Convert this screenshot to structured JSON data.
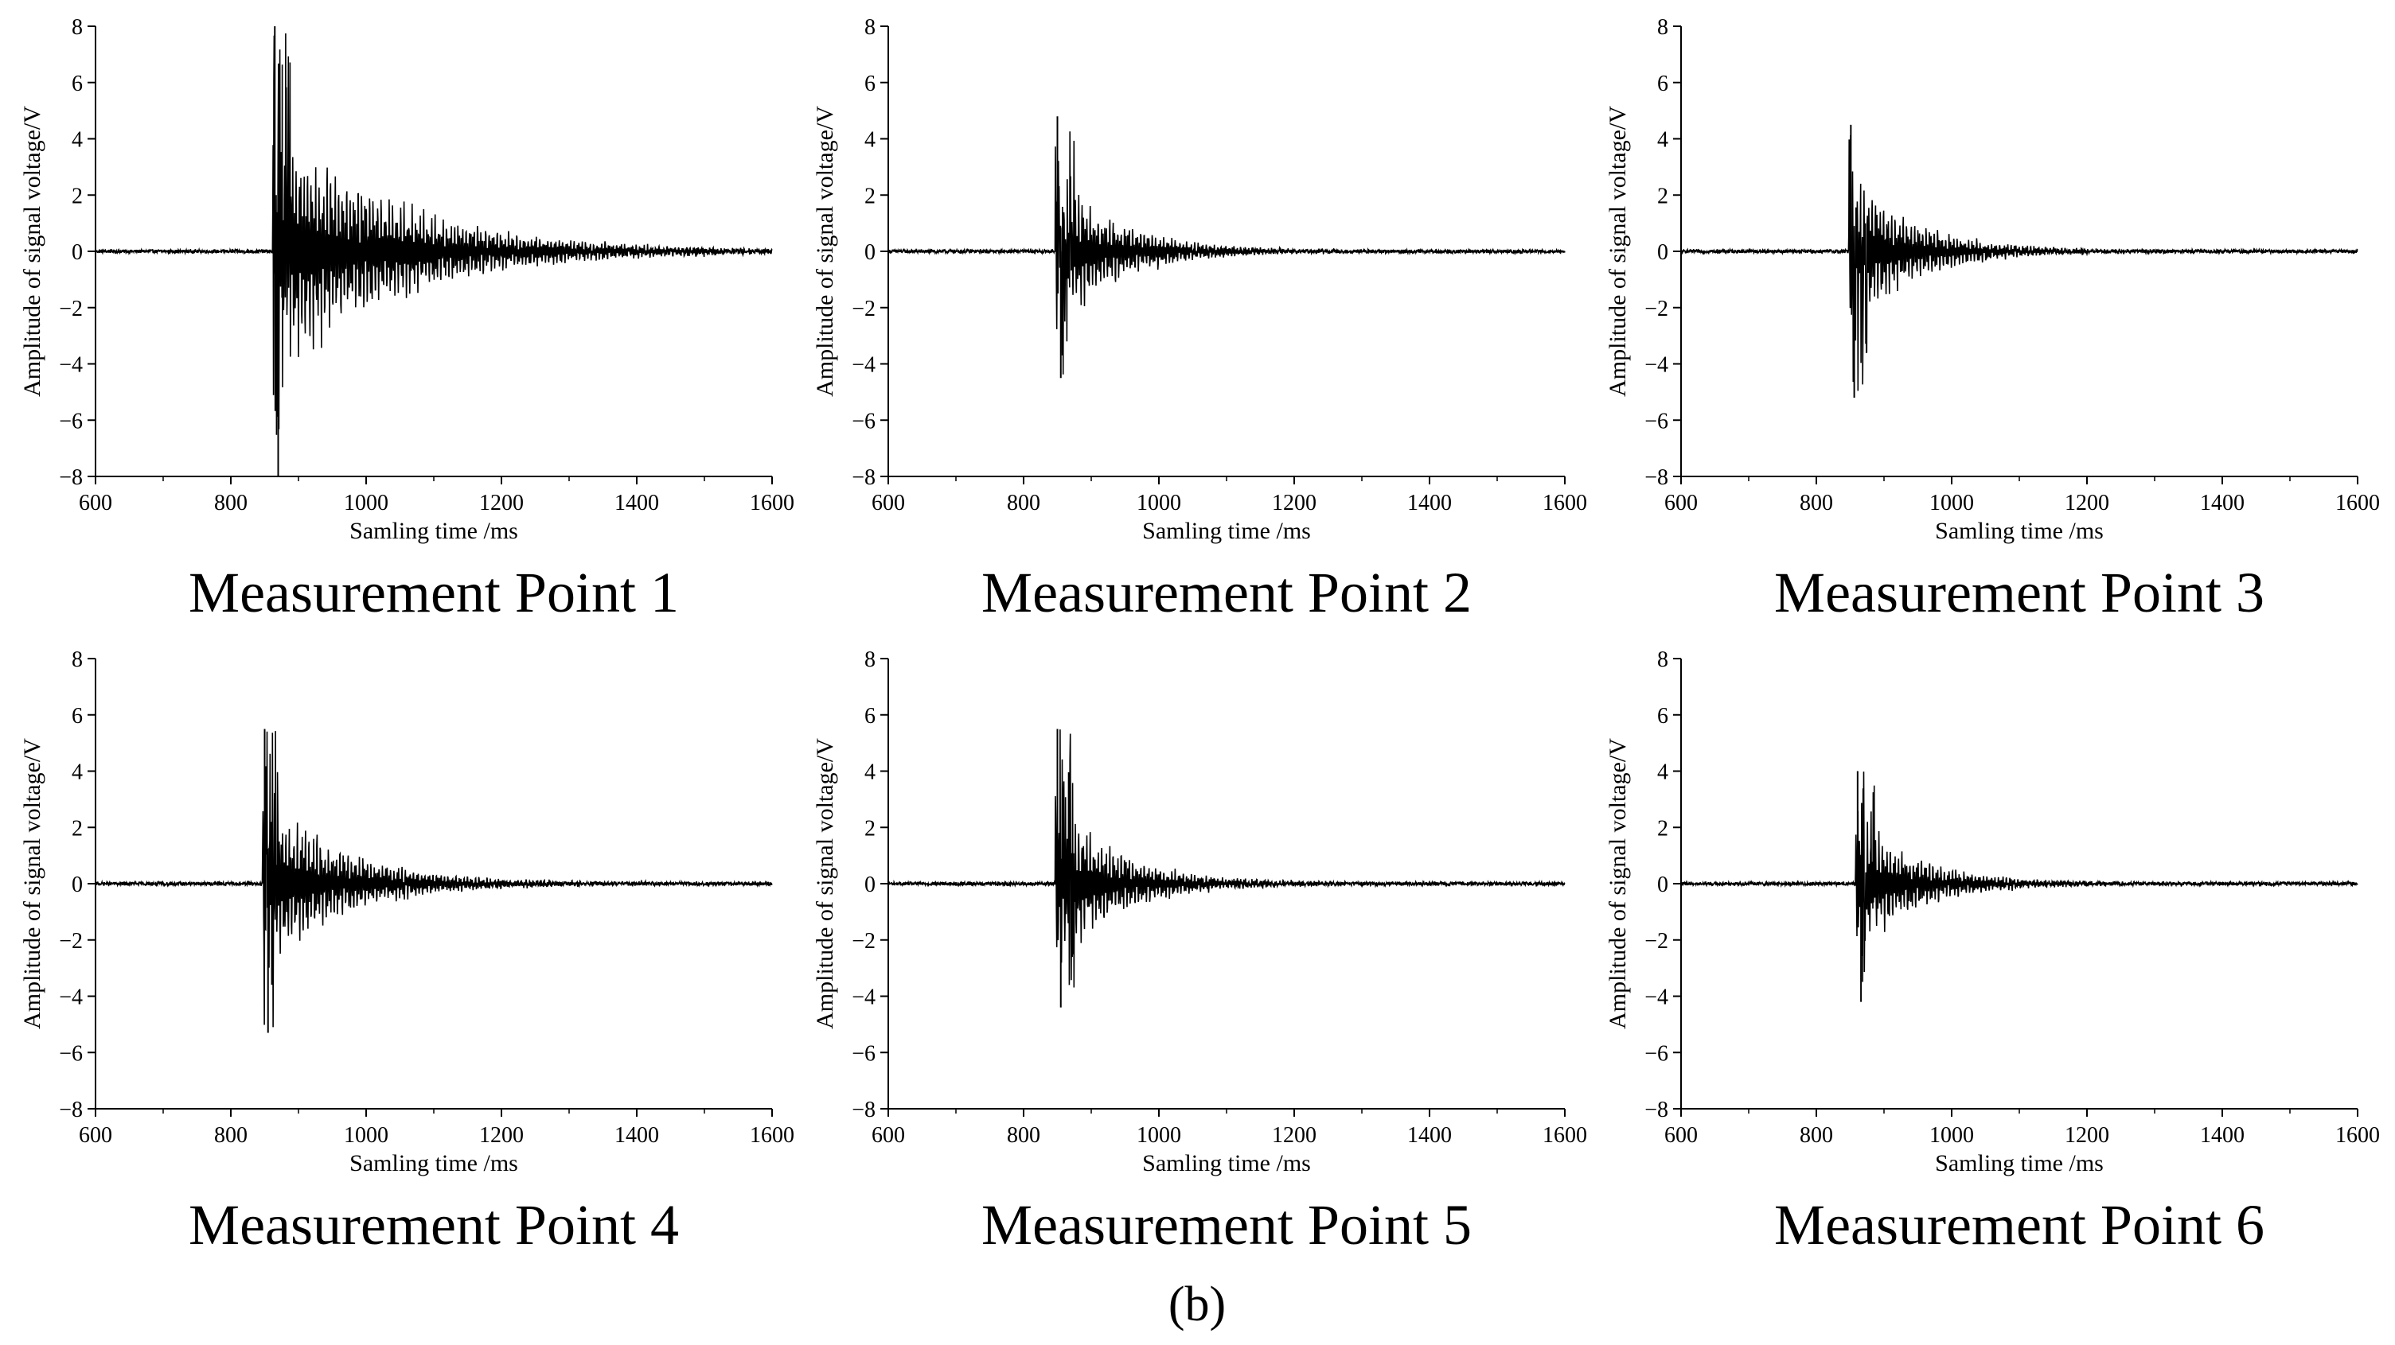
{
  "figure": {
    "sub_label": "(b)"
  },
  "chart_data": [
    {
      "type": "line",
      "title": "Measurement Point 1",
      "xlabel": "Samling time /ms",
      "ylabel": "Amplitude of signal voltage/V",
      "xlim": [
        600,
        1600
      ],
      "ylim": [
        -8,
        8
      ],
      "xticks": [
        600,
        800,
        1000,
        1200,
        1400,
        1600
      ],
      "yticks": [
        8,
        6,
        4,
        2,
        0,
        -2,
        -4,
        -6,
        -8
      ],
      "grid": false,
      "onset": 862,
      "peak_pos": 8.0,
      "peak_neg": -8.0,
      "decay_end": 1430,
      "series": [
        {
          "values_description": "",
          "color": "#000000"
        }
      ]
    },
    {
      "type": "line",
      "title": "Measurement Point 2",
      "xlabel": "Samling time /ms",
      "ylabel": "Amplitude of signal voltage/V",
      "xlim": [
        600,
        1600
      ],
      "ylim": [
        -8,
        8
      ],
      "xticks": [
        600,
        800,
        1000,
        1200,
        1400,
        1600
      ],
      "yticks": [
        8,
        6,
        4,
        2,
        0,
        -2,
        -4,
        -6,
        -8
      ],
      "grid": false,
      "onset": 847,
      "peak_pos": 4.8,
      "peak_neg": -4.5,
      "decay_end": 1150,
      "series": [
        {
          "color": "#000000"
        }
      ]
    },
    {
      "type": "line",
      "title": "Measurement Point 3",
      "xlabel": "Samling time /ms",
      "ylabel": "Amplitude of signal voltage/V",
      "xlim": [
        600,
        1600
      ],
      "ylim": [
        -8,
        8
      ],
      "xticks": [
        600,
        800,
        1000,
        1200,
        1400,
        1600
      ],
      "yticks": [
        8,
        6,
        4,
        2,
        0,
        -2,
        -4,
        -6,
        -8
      ],
      "grid": false,
      "onset": 848,
      "peak_pos": 4.5,
      "peak_neg": -5.2,
      "decay_end": 1150,
      "series": [
        {
          "color": "#000000"
        }
      ]
    },
    {
      "type": "line",
      "title": "Measurement Point 4",
      "xlabel": "Samling time /ms",
      "ylabel": "Amplitude of signal voltage/V",
      "xlim": [
        600,
        1600
      ],
      "ylim": [
        -8,
        8
      ],
      "xticks": [
        600,
        800,
        1000,
        1200,
        1400,
        1600
      ],
      "yticks": [
        8,
        6,
        4,
        2,
        0,
        -2,
        -4,
        -6,
        -8
      ],
      "grid": false,
      "onset": 847,
      "peak_pos": 5.5,
      "peak_neg": -5.3,
      "decay_end": 1220,
      "series": [
        {
          "color": "#000000"
        }
      ]
    },
    {
      "type": "line",
      "title": "Measurement Point 5",
      "xlabel": "Samling time /ms",
      "ylabel": "Amplitude of signal voltage/V",
      "xlim": [
        600,
        1600
      ],
      "ylim": [
        -8,
        8
      ],
      "xticks": [
        600,
        800,
        1000,
        1200,
        1400,
        1600
      ],
      "yticks": [
        8,
        6,
        4,
        2,
        0,
        -2,
        -4,
        -6,
        -8
      ],
      "grid": false,
      "onset": 847,
      "peak_pos": 5.5,
      "peak_neg": -4.4,
      "decay_end": 1150,
      "series": [
        {
          "color": "#000000"
        }
      ]
    },
    {
      "type": "line",
      "title": "Measurement Point 6",
      "xlabel": "Samling time /ms",
      "ylabel": "Amplitude of signal voltage/V",
      "xlim": [
        600,
        1600
      ],
      "ylim": [
        -8,
        8
      ],
      "xticks": [
        600,
        800,
        1000,
        1200,
        1400,
        1600
      ],
      "yticks": [
        8,
        6,
        4,
        2,
        0,
        -2,
        -4,
        -6,
        -8
      ],
      "grid": false,
      "onset": 858,
      "peak_pos": 4.0,
      "peak_neg": -4.2,
      "decay_end": 1150,
      "series": [
        {
          "color": "#000000"
        }
      ]
    }
  ]
}
